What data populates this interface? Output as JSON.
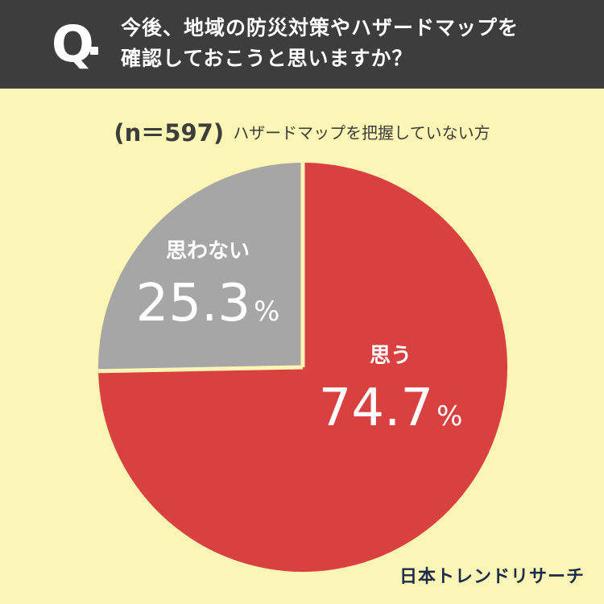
{
  "question": {
    "mark": "Q",
    "line1": "今後、地域の防災対策やハザードマップを",
    "line2": "確認しておこうと思いますか？"
  },
  "sample": {
    "n_label": "(n＝597)",
    "description": "ハザードマップを把握していない方"
  },
  "brand": "日本トレンドリサーチ",
  "colors": {
    "header_bg": "#3d3d3d",
    "background": "#fbf6b6",
    "yes": "#d94040",
    "no": "#a6a6a6",
    "divider": "#fbf6b6"
  },
  "chart_data": {
    "type": "pie",
    "start": "12 o'clock",
    "direction": "clockwise",
    "slices": [
      {
        "label": "思う",
        "value": 74.7,
        "display": "74.7",
        "unit": "%"
      },
      {
        "label": "思わない",
        "value": 25.3,
        "display": "25.3",
        "unit": "%"
      }
    ]
  }
}
